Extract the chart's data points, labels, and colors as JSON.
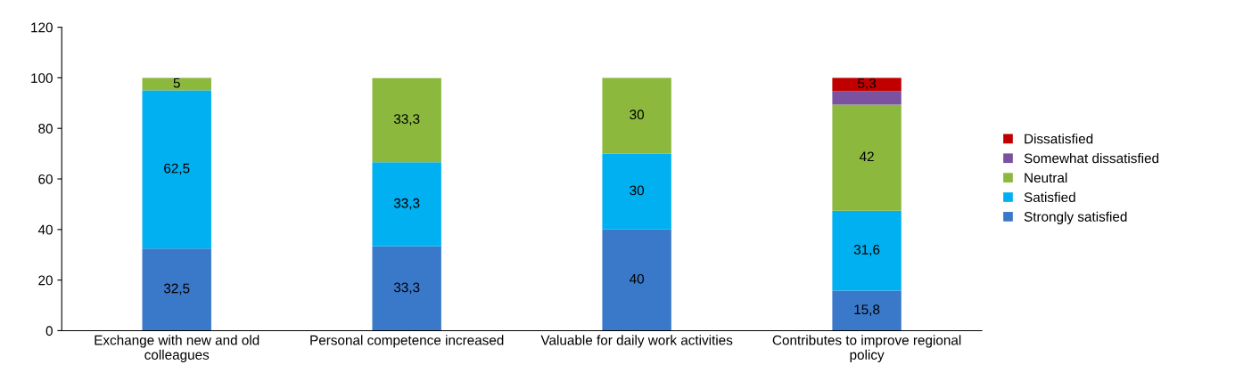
{
  "chart_data": {
    "type": "bar",
    "stacked": true,
    "categories": [
      "Exchange with new and old\ncolleagues",
      "Personal competence increased",
      "Valuable for daily work activities",
      "Contributes to improve regional\npolicy"
    ],
    "series": [
      {
        "name": "Strongly satisfied",
        "color": "#3a78c9",
        "values": [
          32.5,
          33.3,
          40,
          15.8
        ],
        "value_labels": [
          "32,5",
          "33,3",
          "40",
          "15,8"
        ]
      },
      {
        "name": "Satisfied",
        "color": "#00b0f0",
        "values": [
          62.5,
          33.3,
          30,
          31.6
        ],
        "value_labels": [
          "62,5",
          "33,3",
          "30",
          "31,6"
        ]
      },
      {
        "name": "Neutral",
        "color": "#8cb83e",
        "values": [
          5,
          33.3,
          30,
          42
        ],
        "value_labels": [
          "5",
          "33,3",
          "30",
          "42"
        ]
      },
      {
        "name": "Somewhat dissatisfied",
        "color": "#7a52a0",
        "values": [
          null,
          null,
          null,
          5.3
        ],
        "value_labels": [
          null,
          null,
          null,
          null
        ]
      },
      {
        "name": "Dissatisfied",
        "color": "#c00000",
        "values": [
          null,
          null,
          null,
          5.3
        ],
        "value_labels": [
          null,
          null,
          null,
          "5,3"
        ]
      }
    ],
    "ylim": [
      0,
      120
    ],
    "yticks": [
      0,
      20,
      40,
      60,
      80,
      100,
      120
    ],
    "grid": false,
    "legend": "right"
  }
}
